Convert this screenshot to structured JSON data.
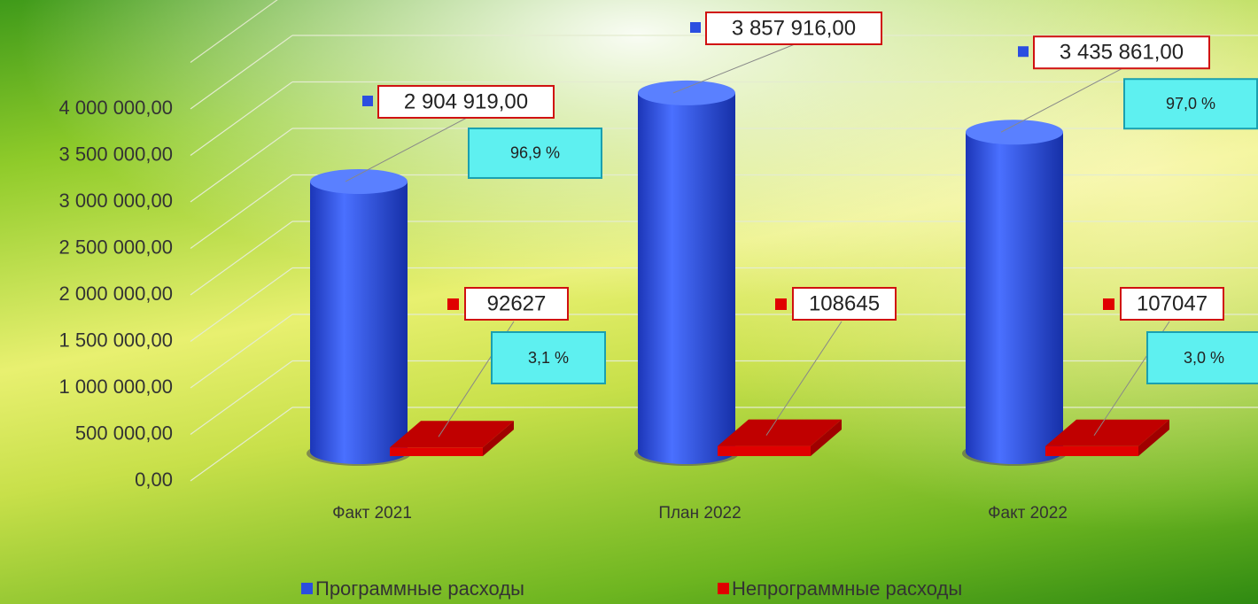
{
  "chart_data": {
    "type": "bar3d",
    "categories": [
      "Факт 2021",
      "План 2022",
      "Факт 2022"
    ],
    "series": [
      {
        "name": "Программные расходы",
        "color": "#2b4ee0",
        "values": [
          2904919,
          3857916,
          3435861
        ],
        "value_labels": [
          "2 904 919,00",
          "3 857 916,00",
          "3 435 861,00"
        ],
        "share_labels": [
          "96,9 %",
          null,
          "97,0 %"
        ]
      },
      {
        "name": "Непрограммные расходы",
        "color": "#e00000",
        "values": [
          92627,
          108645,
          107047
        ],
        "share_labels": [
          "3,1 %",
          null,
          "3,0 %"
        ]
      }
    ],
    "ylim": [
      0,
      4500000
    ],
    "yticks": [
      {
        "value": 0,
        "label": "0,00"
      },
      {
        "value": 500000,
        "label": "500 000,00"
      },
      {
        "value": 1000000,
        "label": "1 000 000,00"
      },
      {
        "value": 1500000,
        "label": "1 500 000,00"
      },
      {
        "value": 2000000,
        "label": "2 000 000,00"
      },
      {
        "value": 2500000,
        "label": "2 500 000,00"
      },
      {
        "value": 3000000,
        "label": "3 000 000,00"
      },
      {
        "value": 3500000,
        "label": "3 500 000,00"
      },
      {
        "value": 4000000,
        "label": "4 000 000,00"
      }
    ],
    "grid": true
  }
}
